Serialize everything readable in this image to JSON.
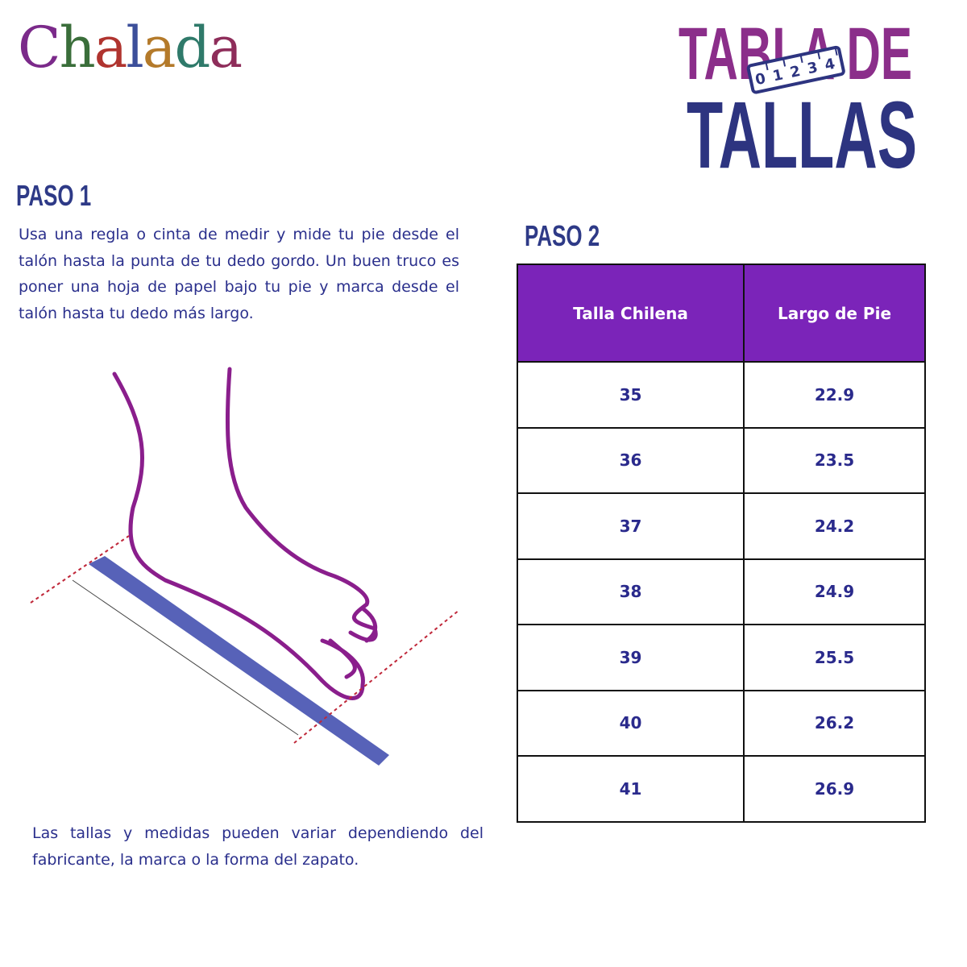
{
  "brand": {
    "logo": "Chalada"
  },
  "header": {
    "title_line1": "TABLA DE",
    "title_line2": "TALLAS",
    "ruler_digits": [
      "0",
      "1",
      "2",
      "3",
      "4"
    ]
  },
  "step1": {
    "heading": "PASO 1",
    "text": "Usa una regla o cinta de medir y mide tu pie desde el talón hasta la punta de tu dedo gordo. Un buen truco es poner una hoja de papel bajo tu pie y marca desde el talón hasta tu dedo más largo.",
    "note": "Las tallas y medidas pueden variar dependiendo del fabricante, la marca o la forma del zapato."
  },
  "step2": {
    "heading": "PASO 2",
    "table": {
      "columns": [
        "Talla Chilena",
        "Largo de Pie"
      ],
      "rows": [
        [
          35,
          22.9
        ],
        [
          36,
          23.5
        ],
        [
          37,
          24.2
        ],
        [
          38,
          24.9
        ],
        [
          39,
          25.5
        ],
        [
          40,
          26.2
        ],
        [
          41,
          26.9
        ]
      ]
    }
  }
}
